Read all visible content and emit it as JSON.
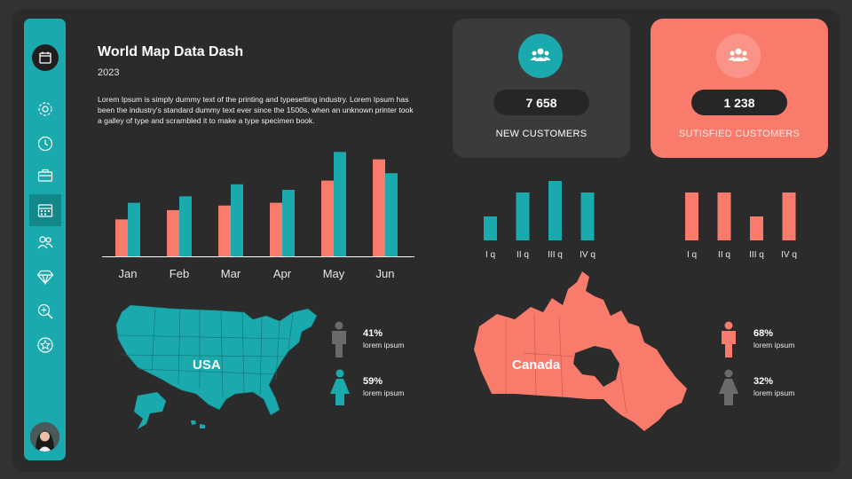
{
  "header": {
    "title": "World Map Data Dash",
    "year": "2023",
    "description": "Lorem Ipsum is simply dummy text of the printing and typesetting industry. Lorem Ipsum has been the industry's standard dummy text ever since the 1500s, when an unknown printer took a galley of type and scrambled it to make a type specimen book."
  },
  "sidebar": {
    "items": [
      "calendar-icon",
      "settings-icon",
      "clock-icon",
      "briefcase-icon",
      "calendar-icon",
      "users-icon",
      "diamond-icon",
      "zoom-icon",
      "star-icon"
    ],
    "active_index": 4
  },
  "kpis": [
    {
      "value": "7 658",
      "label": "NEW CUSTOMERS",
      "icon": "users-icon",
      "color": "#1aa9ac"
    },
    {
      "value": "1 238",
      "label": "SUTISFIED CUSTOMERS",
      "icon": "users-icon",
      "color": "#f87b6c"
    }
  ],
  "chart_data": [
    {
      "type": "bar",
      "categories": [
        "Jan",
        "Feb",
        "Mar",
        "Apr",
        "May",
        "Jun"
      ],
      "series": [
        {
          "values": [
            40,
            50,
            55,
            58,
            82,
            105
          ],
          "color": "#f87b6c"
        },
        {
          "values": [
            58,
            65,
            78,
            72,
            113,
            90
          ],
          "color": "#1aa9ac"
        }
      ],
      "ylim": [
        0,
        120
      ]
    },
    {
      "type": "bar",
      "categories": [
        "I q",
        "II q",
        "III q",
        "IV q"
      ],
      "series": [
        {
          "values": [
            27,
            54,
            67,
            54
          ],
          "color": "#1aa9ac"
        }
      ],
      "ylim": [
        0,
        70
      ]
    },
    {
      "type": "bar",
      "categories": [
        "I q",
        "II q",
        "III q",
        "IV q"
      ],
      "series": [
        {
          "values": [
            54,
            54,
            27,
            54
          ],
          "color": "#f87b6c"
        }
      ],
      "ylim": [
        0,
        70
      ]
    }
  ],
  "maps": [
    {
      "label": "USA",
      "color": "#1aa9ac",
      "stats": [
        {
          "pct": "41%",
          "text": "lorem ipsum",
          "icon": "male-icon",
          "color": "#6a6a6a"
        },
        {
          "pct": "59%",
          "text": "lorem ipsum",
          "icon": "female-icon",
          "color": "#1aa9ac"
        }
      ]
    },
    {
      "label": "Canada",
      "color": "#f87b6c",
      "stats": [
        {
          "pct": "68%",
          "text": "lorem ipsum",
          "icon": "male-icon",
          "color": "#f87b6c"
        },
        {
          "pct": "32%",
          "text": "lorem ipsum",
          "icon": "female-icon",
          "color": "#6a6a6a"
        }
      ]
    }
  ]
}
